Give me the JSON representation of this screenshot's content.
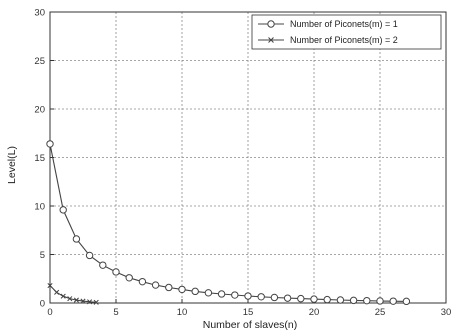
{
  "chart_data": {
    "type": "line",
    "title": "",
    "xlabel": "Number of slaves(n)",
    "ylabel": "Level(L)",
    "xlim": [
      0,
      30
    ],
    "ylim": [
      0,
      30
    ],
    "xticks": [
      0,
      5,
      10,
      15,
      20,
      25,
      30
    ],
    "yticks": [
      0,
      5,
      10,
      15,
      20,
      25,
      30
    ],
    "grid": true,
    "legend_position": "top-right",
    "series": [
      {
        "name": "Number of Piconets(m) = 1",
        "marker": "circle",
        "color": "#444444",
        "x": [
          0,
          1,
          2,
          3,
          4,
          5,
          6,
          7,
          8,
          9,
          10,
          11,
          12,
          13,
          14,
          15,
          16,
          17,
          18,
          19,
          20,
          21,
          22,
          23,
          24,
          25,
          26,
          27
        ],
        "y": [
          16.4,
          9.6,
          6.6,
          4.9,
          3.9,
          3.2,
          2.6,
          2.2,
          1.85,
          1.6,
          1.4,
          1.2,
          1.05,
          0.93,
          0.82,
          0.72,
          0.64,
          0.57,
          0.5,
          0.45,
          0.4,
          0.35,
          0.31,
          0.27,
          0.24,
          0.21,
          0.19,
          0.17
        ]
      },
      {
        "name": "Number of Piconets(m) = 2",
        "marker": "x",
        "color": "#444444",
        "x": [
          0,
          0.5,
          1,
          1.5,
          2,
          2.5,
          3,
          3.5
        ],
        "y": [
          1.8,
          1.1,
          0.7,
          0.45,
          0.3,
          0.2,
          0.12,
          0.07
        ]
      }
    ]
  }
}
